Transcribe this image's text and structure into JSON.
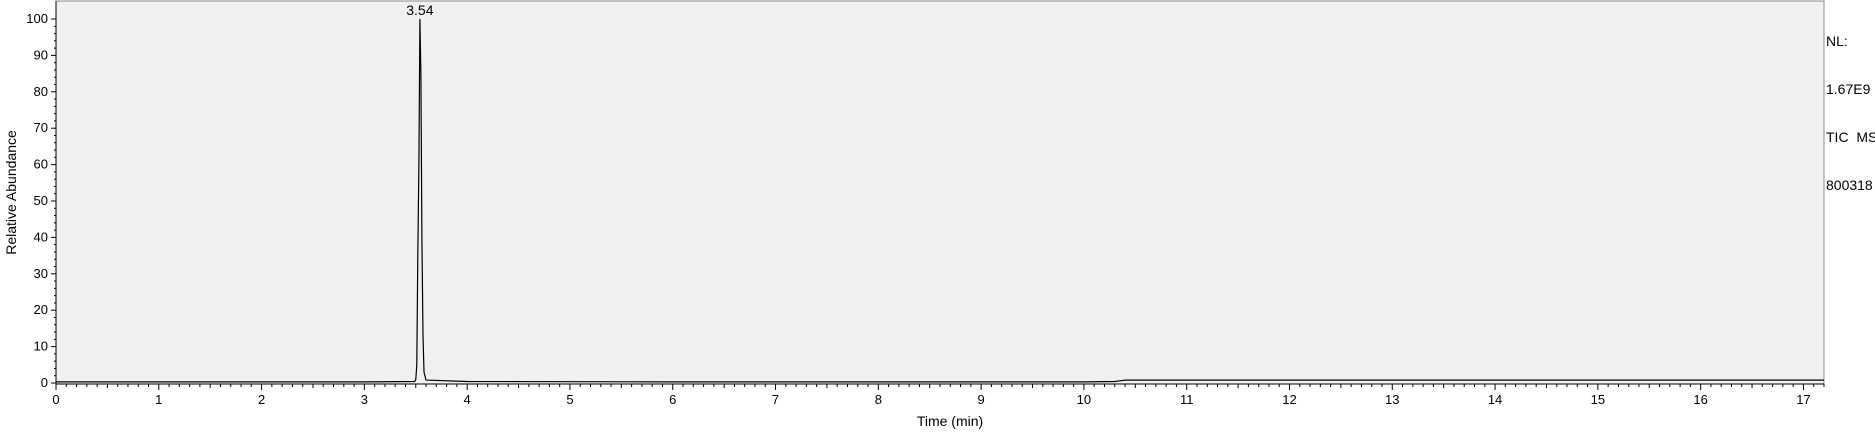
{
  "chart_data": {
    "type": "line",
    "xlabel": "Time (min)",
    "ylabel": "Relative Abundance",
    "xlim": [
      0,
      17.2
    ],
    "ylim": [
      0,
      100
    ],
    "xticks": [
      "0",
      "1",
      "2",
      "3",
      "4",
      "5",
      "6",
      "7",
      "8",
      "9",
      "10",
      "11",
      "12",
      "13",
      "14",
      "15",
      "16",
      "17"
    ],
    "yticks": [
      "0",
      "10",
      "20",
      "30",
      "40",
      "50",
      "60",
      "70",
      "80",
      "90",
      "100"
    ],
    "peak_labels": [
      {
        "x": 3.54,
        "y": 100,
        "text": "3.54"
      }
    ],
    "series": [
      {
        "x": [
          0,
          3.0,
          3.49,
          3.5,
          3.51,
          3.52,
          3.53,
          3.54,
          3.55,
          3.56,
          3.57,
          3.58,
          3.6,
          4.0,
          6.0,
          8.0,
          10.0,
          10.3,
          10.35,
          10.4,
          11.0,
          13.0,
          15.0,
          17.2
        ],
        "y": [
          0.3,
          0.3,
          0.4,
          1,
          5,
          35,
          60,
          100,
          85,
          40,
          13,
          3,
          0.8,
          0.4,
          0.3,
          0.3,
          0.3,
          0.4,
          0.6,
          0.8,
          0.8,
          0.8,
          0.8,
          0.8
        ]
      }
    ],
    "grid": false,
    "background": "#f0f0f0",
    "line_color": "#000000"
  },
  "info": {
    "lines": [
      "NL:",
      "1.67E9",
      "TIC  MS",
      "800318"
    ]
  }
}
